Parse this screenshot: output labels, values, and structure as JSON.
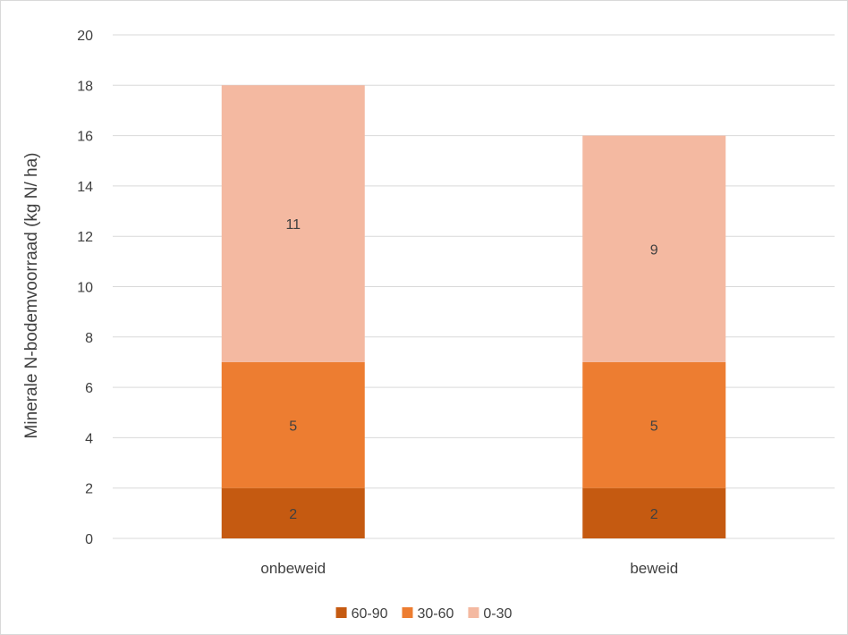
{
  "chart_data": {
    "type": "bar",
    "stacked": true,
    "categories": [
      "onbeweid",
      "beweid"
    ],
    "series": [
      {
        "name": "60-90",
        "values": [
          2,
          2
        ],
        "color": "#c55a11"
      },
      {
        "name": "30-60",
        "values": [
          5,
          5
        ],
        "color": "#ed7d31"
      },
      {
        "name": "0-30",
        "values": [
          11,
          9
        ],
        "color": "#f4b9a1"
      }
    ],
    "data_labels": [
      [
        "2",
        "2"
      ],
      [
        "5",
        "5"
      ],
      [
        "11",
        "9"
      ]
    ],
    "title": "",
    "xlabel": "",
    "ylabel": "Minerale N-bodemvoorraad (kg N/ ha)",
    "ylim": [
      0,
      20
    ],
    "yticks": [
      0,
      2,
      4,
      6,
      8,
      10,
      12,
      14,
      16,
      18,
      20
    ],
    "grid": true,
    "legend_position": "bottom",
    "legend_order": [
      "60-90",
      "30-60",
      "0-30"
    ],
    "colors": {
      "grid": "#d9d9d9",
      "axis": "#d9d9d9",
      "text": "#404040",
      "border": "#d9d9d9"
    }
  }
}
